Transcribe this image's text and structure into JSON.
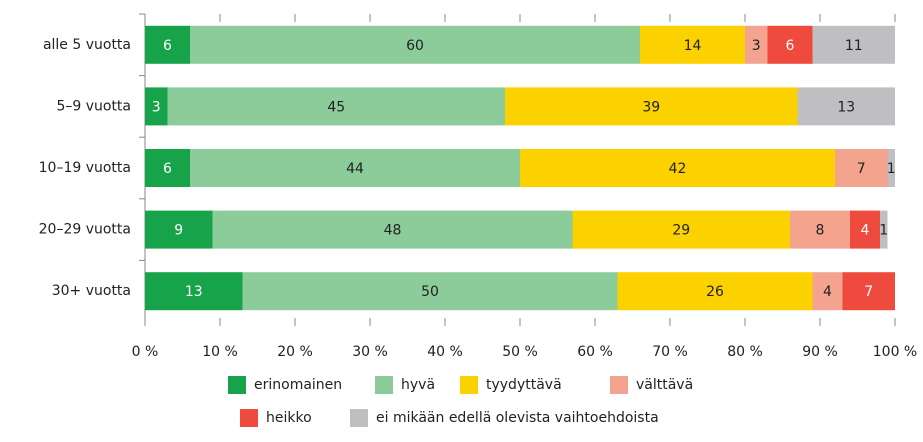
{
  "chart_data": {
    "type": "stacked-bar-horizontal",
    "categories": [
      "alle 5 vuotta",
      "5–9 vuotta",
      "10–19 vuotta",
      "20–29 vuotta",
      "30+ vuotta"
    ],
    "series": [
      {
        "name": "erinomainen",
        "color": "#17a34a",
        "values": [
          6,
          3,
          6,
          9,
          13
        ]
      },
      {
        "name": "hyvä",
        "color": "#8ccc9b",
        "values": [
          60,
          45,
          44,
          48,
          50
        ]
      },
      {
        "name": "tyydyttävä",
        "color": "#fcd100",
        "values": [
          14,
          39,
          42,
          29,
          26
        ]
      },
      {
        "name": "välttävä",
        "color": "#f4a38f",
        "values": [
          3,
          null,
          7,
          8,
          4
        ]
      },
      {
        "name": "heikko",
        "color": "#ee4a3e",
        "values": [
          6,
          null,
          null,
          4,
          7
        ]
      },
      {
        "name": "ei mikään edellä olevista vaihtoehdoista",
        "color": "#bfbfc2",
        "values": [
          11,
          13,
          1,
          1,
          null
        ]
      }
    ],
    "xlim": [
      0,
      100
    ],
    "xticks": [
      {
        "value": 0,
        "label": "0 %"
      },
      {
        "value": 10,
        "label": "10 %"
      },
      {
        "value": 20,
        "label": "20 %"
      },
      {
        "value": 30,
        "label": "30 %"
      },
      {
        "value": 40,
        "label": "40 %"
      },
      {
        "value": 50,
        "label": "50 %"
      },
      {
        "value": 60,
        "label": "60 %"
      },
      {
        "value": 70,
        "label": "70 %"
      },
      {
        "value": 80,
        "label": "80 %"
      },
      {
        "value": 90,
        "label": "90 %"
      },
      {
        "value": 100,
        "label": "100 %"
      }
    ],
    "legend": "bottom"
  }
}
